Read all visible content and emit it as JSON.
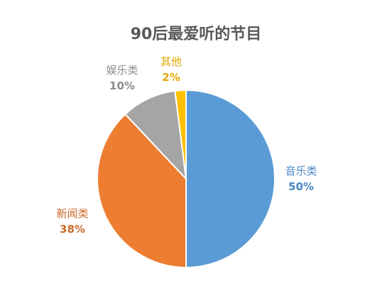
{
  "chart_data": {
    "type": "pie",
    "title": "90后最爱听的节目",
    "slices": [
      {
        "name": "音乐类",
        "value": 50,
        "label": "50%",
        "color": "#5B9BD5"
      },
      {
        "name": "新闻类",
        "value": 38,
        "label": "38%",
        "color": "#ED7D31"
      },
      {
        "name": "娱乐类",
        "value": 10,
        "label": "10%",
        "color": "#A5A5A5"
      },
      {
        "name": "其他",
        "value": 2,
        "label": "2%",
        "color": "#FFC000"
      }
    ],
    "label_colors": [
      "#4A86C5",
      "#C96A2A",
      "#8C8C8C",
      "#E0A800"
    ]
  }
}
